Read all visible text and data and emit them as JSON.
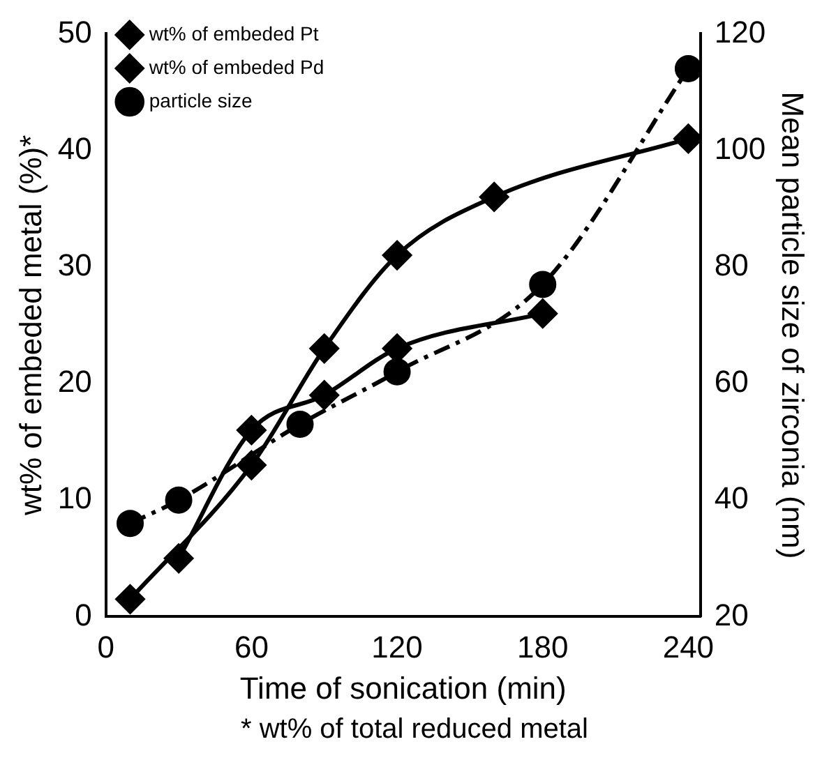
{
  "chart_data": {
    "type": "line",
    "xlabel": "Time of sonication (min)",
    "ylabel": "wt% of embeded metal (%)*",
    "y2label": "Mean particle size of zirconia (nm)",
    "xlim": [
      0,
      245
    ],
    "xticks": [
      0,
      60,
      120,
      180,
      240
    ],
    "ylim": [
      0,
      50
    ],
    "yticks": [
      0,
      10,
      20,
      30,
      40,
      50
    ],
    "y2lim": [
      20,
      120
    ],
    "y2ticks": [
      20,
      40,
      60,
      80,
      100,
      120
    ],
    "grid": false,
    "legend": "top left",
    "annotations": [
      "* wt% of total reduced metal"
    ],
    "series": [
      {
        "name": "wt% of embeded Pt",
        "color": "#000000",
        "x": [
          10,
          60,
          90,
          120,
          160,
          240
        ],
        "values": [
          1.5,
          13,
          23,
          31,
          36,
          41
        ],
        "marker": "diamond",
        "line_style": "solid"
      },
      {
        "name": "wt% of embeded Pd",
        "color": "#000000",
        "x": [
          30,
          60,
          90,
          120,
          180
        ],
        "values": [
          5,
          16,
          19,
          23,
          26
        ],
        "marker": "diamond",
        "line_style": "solid"
      },
      {
        "name": "particle size",
        "color": "#000000",
        "axis": "y2",
        "x": [
          10,
          30,
          80,
          120,
          180,
          240
        ],
        "values": [
          36,
          40,
          53,
          62,
          77,
          114
        ],
        "marker": "circle",
        "line_style": "dashed"
      }
    ]
  }
}
